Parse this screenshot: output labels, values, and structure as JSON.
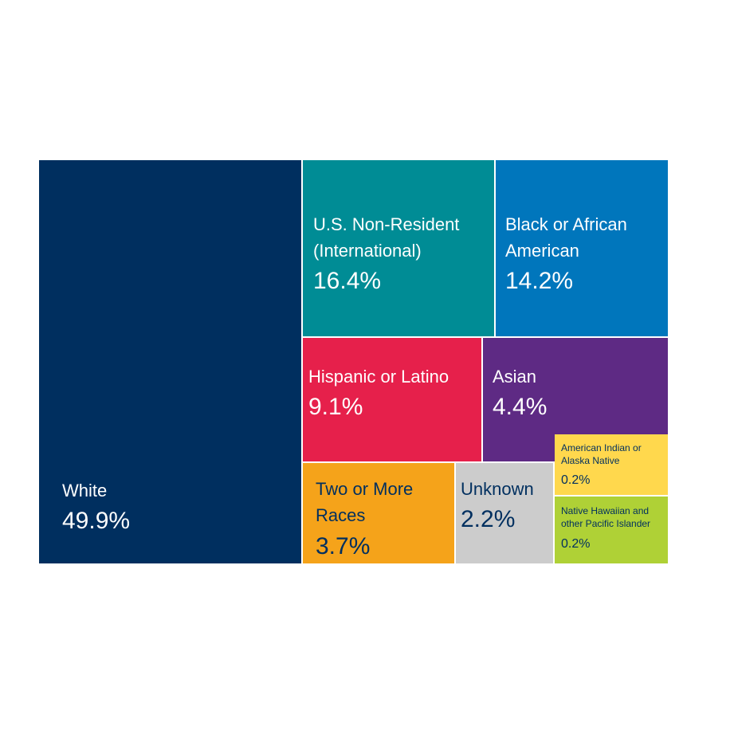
{
  "chart_data": {
    "type": "treemap",
    "title": "",
    "unit": "%",
    "items": [
      {
        "label": "White",
        "value": 49.9,
        "display": "49.9%",
        "color": "#002f5f",
        "text_color": "#ffffff"
      },
      {
        "label": "U.S. Non-Resident\n(International)",
        "value": 16.4,
        "display": "16.4%",
        "color": "#008c95",
        "text_color": "#ffffff"
      },
      {
        "label": "Black or African\nAmerican",
        "value": 14.2,
        "display": "14.2%",
        "color": "#0076bc",
        "text_color": "#ffffff"
      },
      {
        "label": "Hispanic or Latino",
        "value": 9.1,
        "display": "9.1%",
        "color": "#e6204b",
        "text_color": "#ffffff"
      },
      {
        "label": "Asian",
        "value": 4.4,
        "display": "4.4%",
        "color": "#5e2a84",
        "text_color": "#ffffff"
      },
      {
        "label": "Two or More\nRaces",
        "value": 3.7,
        "display": "3.7%",
        "color": "#f5a31a",
        "text_color": "#002f5f"
      },
      {
        "label": "Unknown",
        "value": 2.2,
        "display": "2.2%",
        "color": "#cccccc",
        "text_color": "#002f5f"
      },
      {
        "label": "American Indian or\nAlaska Native",
        "value": 0.2,
        "display": "0.2%",
        "color": "#ffd84d",
        "text_color": "#002f5f"
      },
      {
        "label": "Native Hawaiian and\nother Pacific Islander",
        "value": 0.2,
        "display": "0.2%",
        "color": "#afd136",
        "text_color": "#002f5f"
      }
    ]
  }
}
